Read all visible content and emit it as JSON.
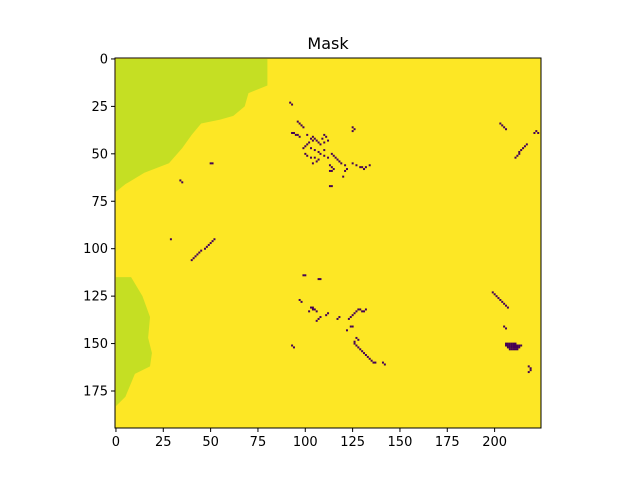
{
  "chart_data": {
    "type": "heatmap",
    "title": "Mask",
    "xlabel": "",
    "ylabel": "",
    "xlim": [
      -0.5,
      224.5
    ],
    "ylim": [
      194.5,
      -0.5
    ],
    "xticks": [
      0,
      25,
      50,
      75,
      100,
      125,
      150,
      175,
      200
    ],
    "yticks": [
      0,
      25,
      50,
      75,
      100,
      125,
      150,
      175
    ],
    "grid": false,
    "colors": {
      "background": "#fde725",
      "land": "#c5df23",
      "mask": "#440154"
    },
    "regions": [
      {
        "name": "land-top-left",
        "value": "land",
        "polygon": [
          [
            0,
            0
          ],
          [
            80,
            0
          ],
          [
            80,
            14
          ],
          [
            70,
            18
          ],
          [
            68,
            25
          ],
          [
            62,
            30
          ],
          [
            55,
            32
          ],
          [
            45,
            34
          ],
          [
            40,
            40
          ],
          [
            35,
            47
          ],
          [
            28,
            55
          ],
          [
            15,
            60
          ],
          [
            5,
            66
          ],
          [
            0,
            70
          ]
        ]
      },
      {
        "name": "land-bottom-left",
        "value": "land",
        "polygon": [
          [
            0,
            115
          ],
          [
            8,
            115
          ],
          [
            14,
            125
          ],
          [
            18,
            136
          ],
          [
            17,
            147
          ],
          [
            19,
            155
          ],
          [
            18,
            162
          ],
          [
            10,
            166
          ],
          [
            5,
            178
          ],
          [
            0,
            183
          ]
        ]
      }
    ],
    "mask_points": [
      [
        92,
        23
      ],
      [
        93,
        24
      ],
      [
        96,
        33
      ],
      [
        97,
        34
      ],
      [
        98,
        35
      ],
      [
        99,
        36
      ],
      [
        93,
        39
      ],
      [
        94,
        39
      ],
      [
        95,
        40
      ],
      [
        96,
        40
      ],
      [
        97,
        41
      ],
      [
        101,
        40
      ],
      [
        103,
        42
      ],
      [
        104,
        43
      ],
      [
        102,
        44
      ],
      [
        101,
        45
      ],
      [
        100,
        46
      ],
      [
        99,
        47
      ],
      [
        104,
        41
      ],
      [
        105,
        42
      ],
      [
        106,
        43
      ],
      [
        107,
        44
      ],
      [
        108,
        45
      ],
      [
        109,
        42
      ],
      [
        110,
        44
      ],
      [
        110,
        40
      ],
      [
        111,
        41
      ],
      [
        112,
        43
      ],
      [
        103,
        47
      ],
      [
        105,
        48
      ],
      [
        107,
        49
      ],
      [
        110,
        48
      ],
      [
        100,
        50
      ],
      [
        101,
        51
      ],
      [
        103,
        52
      ],
      [
        105,
        52
      ],
      [
        108,
        50
      ],
      [
        110,
        51
      ],
      [
        112,
        52
      ],
      [
        114,
        50
      ],
      [
        115,
        51
      ],
      [
        116,
        52
      ],
      [
        117,
        53
      ],
      [
        118,
        54
      ],
      [
        119,
        55
      ],
      [
        121,
        56
      ],
      [
        107,
        53
      ],
      [
        106,
        54
      ],
      [
        104,
        55
      ],
      [
        113,
        56
      ],
      [
        114,
        57
      ],
      [
        115,
        58
      ],
      [
        125,
        36
      ],
      [
        126,
        37
      ],
      [
        125,
        38
      ],
      [
        113,
        59
      ],
      [
        114,
        59
      ],
      [
        121,
        59
      ],
      [
        122,
        58
      ],
      [
        125,
        55
      ],
      [
        127,
        56
      ],
      [
        129,
        57
      ],
      [
        130,
        57
      ],
      [
        131,
        58
      ],
      [
        132,
        57
      ],
      [
        134,
        56
      ],
      [
        113,
        67
      ],
      [
        114,
        67
      ],
      [
        120,
        62
      ],
      [
        50,
        55
      ],
      [
        51,
        55
      ],
      [
        34,
        64
      ],
      [
        35,
        65
      ],
      [
        29,
        95
      ],
      [
        52,
        95
      ],
      [
        51,
        96
      ],
      [
        50,
        97
      ],
      [
        49,
        98
      ],
      [
        48,
        99
      ],
      [
        47,
        100
      ],
      [
        45,
        101
      ],
      [
        44,
        102
      ],
      [
        43,
        103
      ],
      [
        42,
        104
      ],
      [
        41,
        105
      ],
      [
        40,
        106
      ],
      [
        99,
        114
      ],
      [
        100,
        114
      ],
      [
        107,
        116
      ],
      [
        108,
        116
      ],
      [
        97,
        127
      ],
      [
        98,
        128
      ],
      [
        103,
        131
      ],
      [
        104,
        131
      ],
      [
        104,
        132
      ],
      [
        105,
        132
      ],
      [
        106,
        133
      ],
      [
        102,
        133
      ],
      [
        107,
        137
      ],
      [
        106,
        138
      ],
      [
        108,
        136
      ],
      [
        111,
        135
      ],
      [
        112,
        134
      ],
      [
        117,
        137
      ],
      [
        118,
        136
      ],
      [
        123,
        137
      ],
      [
        124,
        136
      ],
      [
        125,
        135
      ],
      [
        126,
        134
      ],
      [
        127,
        133
      ],
      [
        128,
        132
      ],
      [
        129,
        132
      ],
      [
        130,
        133
      ],
      [
        131,
        133
      ],
      [
        132,
        132
      ],
      [
        122,
        143
      ],
      [
        124,
        141
      ],
      [
        125,
        141
      ],
      [
        127,
        147
      ],
      [
        128,
        148
      ],
      [
        126,
        149
      ],
      [
        93,
        151
      ],
      [
        94,
        152
      ],
      [
        126,
        150
      ],
      [
        127,
        151
      ],
      [
        128,
        152
      ],
      [
        129,
        153
      ],
      [
        130,
        154
      ],
      [
        131,
        155
      ],
      [
        132,
        156
      ],
      [
        133,
        157
      ],
      [
        134,
        158
      ],
      [
        135,
        159
      ],
      [
        136,
        160
      ],
      [
        137,
        160
      ],
      [
        141,
        160
      ],
      [
        142,
        161
      ],
      [
        203,
        34
      ],
      [
        204,
        35
      ],
      [
        205,
        36
      ],
      [
        206,
        37
      ],
      [
        221,
        39
      ],
      [
        222,
        38
      ],
      [
        223,
        39
      ],
      [
        217,
        45
      ],
      [
        216,
        46
      ],
      [
        215,
        47
      ],
      [
        214,
        48
      ],
      [
        213,
        49
      ],
      [
        213,
        50
      ],
      [
        212,
        51
      ],
      [
        211,
        52
      ],
      [
        199,
        123
      ],
      [
        200,
        124
      ],
      [
        201,
        125
      ],
      [
        202,
        126
      ],
      [
        203,
        127
      ],
      [
        204,
        128
      ],
      [
        205,
        129
      ],
      [
        206,
        130
      ],
      [
        207,
        131
      ],
      [
        205,
        141
      ],
      [
        206,
        142
      ],
      [
        206,
        150
      ],
      [
        207,
        150
      ],
      [
        208,
        150
      ],
      [
        209,
        150
      ],
      [
        210,
        150
      ],
      [
        211,
        150
      ],
      [
        206,
        151
      ],
      [
        207,
        151
      ],
      [
        208,
        151
      ],
      [
        209,
        151
      ],
      [
        210,
        151
      ],
      [
        211,
        151
      ],
      [
        212,
        151
      ],
      [
        213,
        151
      ],
      [
        214,
        151
      ],
      [
        207,
        152
      ],
      [
        208,
        152
      ],
      [
        209,
        152
      ],
      [
        210,
        152
      ],
      [
        211,
        152
      ],
      [
        212,
        152
      ],
      [
        213,
        152
      ],
      [
        208,
        153
      ],
      [
        209,
        153
      ],
      [
        210,
        153
      ],
      [
        211,
        153
      ],
      [
        212,
        153
      ],
      [
        218,
        162
      ],
      [
        219,
        163
      ],
      [
        219,
        164
      ],
      [
        218,
        165
      ]
    ]
  }
}
